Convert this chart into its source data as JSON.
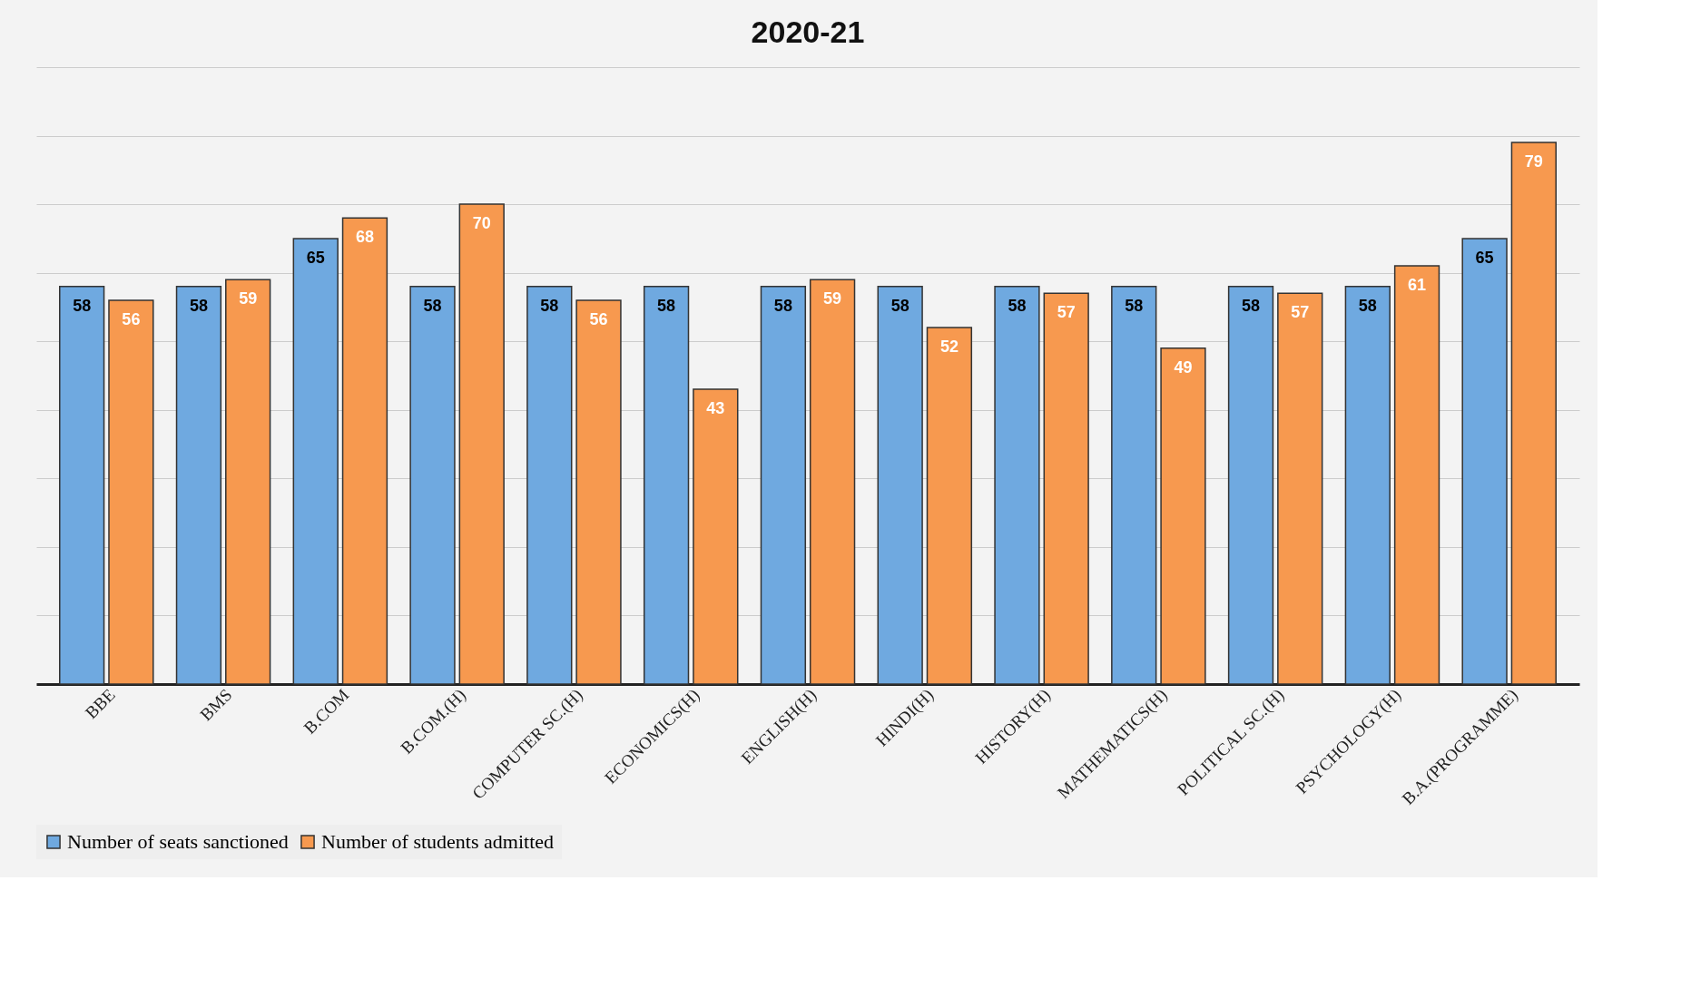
{
  "chart_data": {
    "type": "bar",
    "title": "2020-21",
    "categories": [
      "BBE",
      "BMS",
      "B.COM",
      "B.COM.(H)",
      "COMPUTER SC.(H)",
      "ECONOMICS(H)",
      "ENGLISH(H)",
      "HINDI(H)",
      "HISTORY(H)",
      "MATHEMATICS(H)",
      "POLITICAL SC.(H)",
      "PSYCHOLOGY(H)",
      "B.A.(PROGRAMME)"
    ],
    "series": [
      {
        "name": "Number of seats sanctioned",
        "color": "#6fa9e0",
        "values": [
          58,
          58,
          65,
          58,
          58,
          58,
          58,
          58,
          58,
          58,
          58,
          58,
          65
        ]
      },
      {
        "name": "Number of students admitted",
        "color": "#f7994f",
        "values": [
          56,
          59,
          68,
          70,
          56,
          43,
          59,
          52,
          57,
          49,
          57,
          61,
          79
        ]
      }
    ],
    "ylim": [
      0,
      90
    ],
    "yticks": [
      {
        "value": 0,
        "label": null
      },
      {
        "value": 10,
        "label": null
      },
      {
        "value": 20,
        "label": null
      },
      {
        "value": 30,
        "label": null
      },
      {
        "value": 40,
        "label": null
      },
      {
        "value": 50,
        "label": null
      },
      {
        "value": 60,
        "label": null
      },
      {
        "value": 70,
        "label": null
      },
      {
        "value": 80,
        "label": null
      },
      {
        "value": 90,
        "label": null
      }
    ],
    "tick_labels": "x",
    "grid": "y",
    "legend": "bottom",
    "data_labels": true
  }
}
